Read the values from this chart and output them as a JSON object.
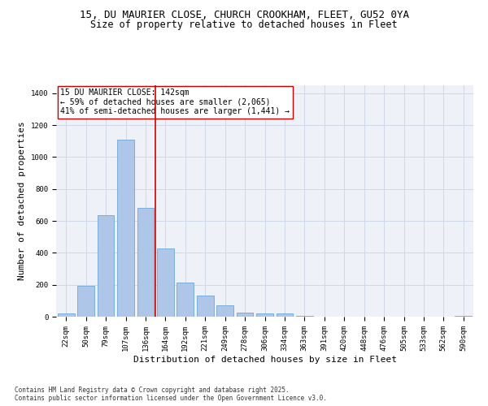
{
  "title_line1": "15, DU MAURIER CLOSE, CHURCH CROOKHAM, FLEET, GU52 0YA",
  "title_line2": "Size of property relative to detached houses in Fleet",
  "xlabel": "Distribution of detached houses by size in Fleet",
  "ylabel": "Number of detached properties",
  "categories": [
    "22sqm",
    "50sqm",
    "79sqm",
    "107sqm",
    "136sqm",
    "164sqm",
    "192sqm",
    "221sqm",
    "249sqm",
    "278sqm",
    "306sqm",
    "334sqm",
    "363sqm",
    "391sqm",
    "420sqm",
    "448sqm",
    "476sqm",
    "505sqm",
    "533sqm",
    "562sqm",
    "590sqm"
  ],
  "values": [
    20,
    195,
    635,
    1110,
    680,
    425,
    215,
    130,
    70,
    25,
    20,
    20,
    5,
    0,
    0,
    0,
    0,
    0,
    0,
    0,
    5
  ],
  "bar_color": "#aec6e8",
  "bar_edge_color": "#5b9bd5",
  "vline_x": 4.5,
  "vline_color": "#cc0000",
  "annotation_text": "15 DU MAURIER CLOSE: 142sqm\n← 59% of detached houses are smaller (2,065)\n41% of semi-detached houses are larger (1,441) →",
  "annotation_box_color": "#ffffff",
  "annotation_box_edge": "#cc0000",
  "ylim": [
    0,
    1450
  ],
  "yticks": [
    0,
    200,
    400,
    600,
    800,
    1000,
    1200,
    1400
  ],
  "grid_color": "#d0d8e8",
  "background_color": "#eef2f8",
  "footnote": "Contains HM Land Registry data © Crown copyright and database right 2025.\nContains public sector information licensed under the Open Government Licence v3.0.",
  "title_fontsize": 9,
  "subtitle_fontsize": 8.5,
  "tick_fontsize": 6.5,
  "label_fontsize": 8,
  "annot_fontsize": 7,
  "footnote_fontsize": 5.5
}
